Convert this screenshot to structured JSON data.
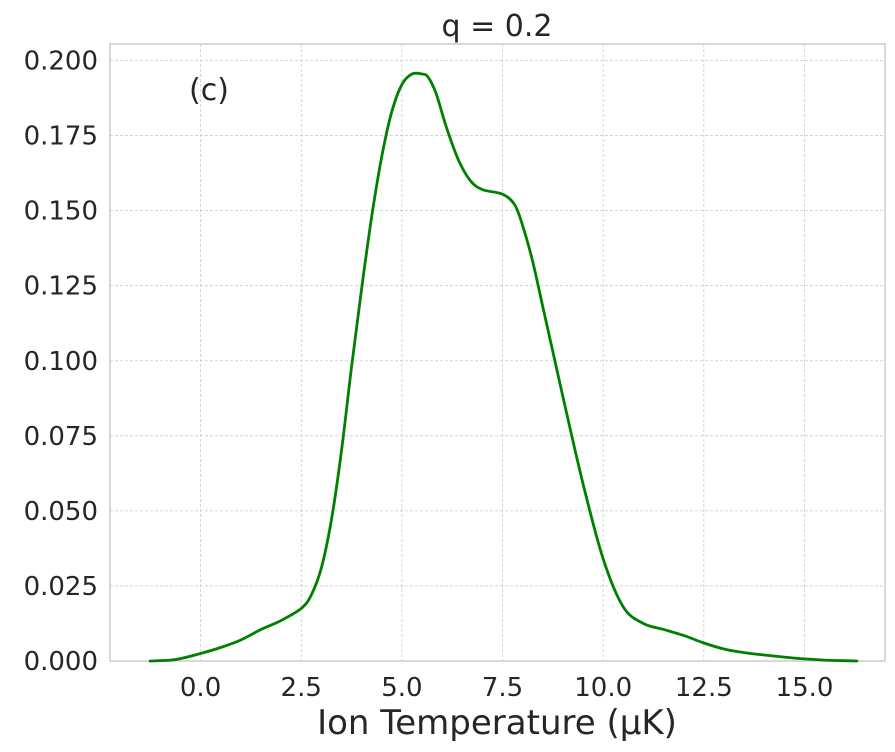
{
  "chart_data": {
    "type": "line",
    "title": "q = 0.2",
    "xlabel": "Ion Temperature (µK)",
    "ylabel": "",
    "annotation": "(c)",
    "xlim": [
      -2.25,
      17.0
    ],
    "ylim": [
      0.0,
      0.2055
    ],
    "xticks": [
      0.0,
      2.5,
      5.0,
      7.5,
      10.0,
      12.5,
      15.0
    ],
    "xtick_labels": [
      "0.0",
      "2.5",
      "5.0",
      "7.5",
      "10.0",
      "12.5",
      "15.0"
    ],
    "yticks": [
      0.0,
      0.025,
      0.05,
      0.075,
      0.1,
      0.125,
      0.15,
      0.175,
      0.2
    ],
    "ytick_labels": [
      "0.000",
      "0.025",
      "0.050",
      "0.075",
      "0.100",
      "0.125",
      "0.150",
      "0.175",
      "0.200"
    ],
    "grid": true,
    "series": [
      {
        "color": "#008000",
        "x": [
          -1.25,
          -0.75,
          -0.5,
          0.0,
          0.5,
          1.0,
          1.5,
          2.0,
          2.5,
          2.75,
          3.0,
          3.25,
          3.5,
          3.75,
          4.0,
          4.25,
          4.5,
          4.75,
          5.0,
          5.25,
          5.5,
          5.65,
          5.85,
          6.1,
          6.4,
          6.7,
          7.0,
          7.5,
          7.8,
          8.0,
          8.25,
          8.5,
          8.75,
          9.0,
          9.5,
          10.0,
          10.5,
          11.0,
          11.5,
          12.0,
          12.5,
          13.0,
          13.5,
          14.0,
          14.5,
          15.0,
          15.5,
          16.0,
          16.3
        ],
        "y": [
          0.0,
          0.0003,
          0.0008,
          0.0025,
          0.0045,
          0.007,
          0.0105,
          0.0135,
          0.0175,
          0.022,
          0.031,
          0.047,
          0.07,
          0.098,
          0.124,
          0.148,
          0.168,
          0.183,
          0.192,
          0.1955,
          0.1955,
          0.1945,
          0.189,
          0.178,
          0.167,
          0.16,
          0.157,
          0.1555,
          0.152,
          0.145,
          0.133,
          0.118,
          0.103,
          0.088,
          0.059,
          0.034,
          0.018,
          0.0125,
          0.0105,
          0.0085,
          0.006,
          0.004,
          0.0028,
          0.002,
          0.0013,
          0.0007,
          0.0003,
          0.0001,
          0.0
        ]
      }
    ]
  }
}
